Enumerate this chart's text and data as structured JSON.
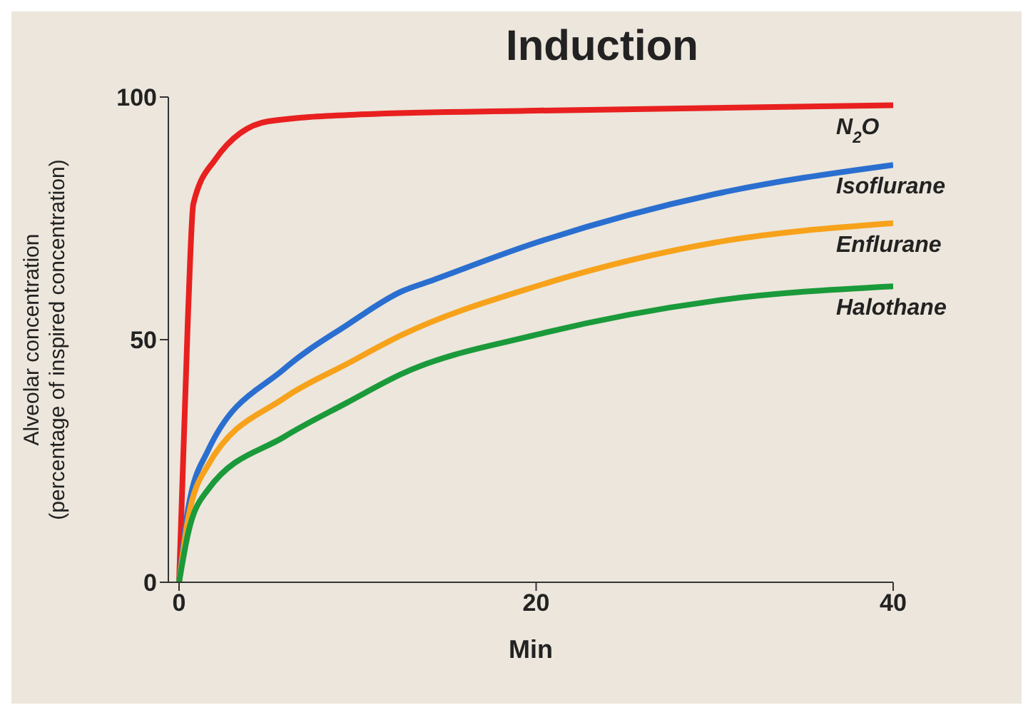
{
  "chart_data": {
    "type": "line",
    "title": "Induction",
    "xlabel": "Min",
    "ylabel": "Alveolar concentration\n(percentage of inspired concentration)",
    "xlim": [
      -0.6,
      40
    ],
    "xticks": [
      0,
      20,
      40
    ],
    "ylim": [
      0,
      100
    ],
    "yticks": [
      0,
      50,
      100
    ],
    "grid": false,
    "legend": false,
    "marker": "none",
    "line_style": "solid",
    "series": [
      {
        "name": "N$_{2}$O",
        "color": "#e8201f",
        "x": [
          0,
          0.5,
          0.8,
          2,
          5,
          10,
          20,
          40
        ],
        "values": [
          0,
          55,
          78,
          87,
          95,
          96.4,
          97.2,
          98.3
        ]
      },
      {
        "name": "Isoflurane",
        "color": "#2a6fd0",
        "x": [
          0,
          0.5,
          1.6,
          5.9,
          9.4,
          12.5,
          14,
          20,
          30,
          40
        ],
        "values": [
          0,
          15,
          27,
          44,
          53,
          60,
          62,
          70,
          80,
          86
        ]
      },
      {
        "name": "Enflurane",
        "color": "#f7a21b",
        "x": [
          0,
          0.5,
          1.6,
          5.9,
          9.4,
          12.5,
          20,
          30,
          40
        ],
        "values": [
          0,
          13,
          24,
          38,
          45,
          51,
          61,
          70,
          74
        ]
      },
      {
        "name": "Halothane",
        "color": "#1a9a3a",
        "x": [
          0,
          0.5,
          1.6,
          5.9,
          9.4,
          12.5,
          20,
          30,
          40
        ],
        "values": [
          0,
          10,
          19,
          30,
          37,
          43,
          51,
          58,
          61
        ]
      }
    ]
  }
}
